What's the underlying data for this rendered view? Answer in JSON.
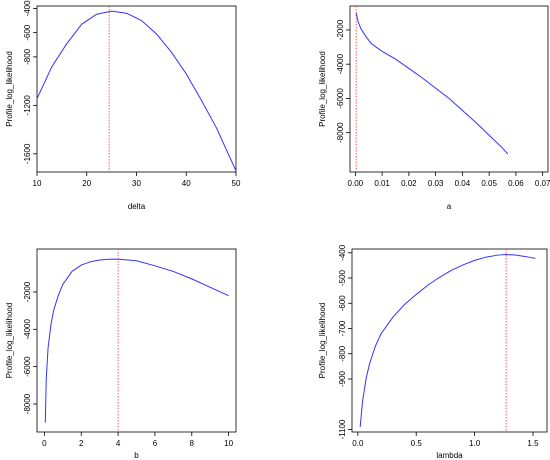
{
  "chart_data": [
    {
      "type": "line",
      "xlabel": "delta",
      "ylabel": "Profile_log_likelihood",
      "xlim": [
        10,
        50
      ],
      "ylim": [
        -1750,
        -380
      ],
      "xticks": [
        10,
        20,
        30,
        40,
        50
      ],
      "yticks": [
        -1600,
        -1200,
        -800,
        -600,
        -400
      ],
      "series": [
        {
          "x": [
            10,
            13,
            16,
            19,
            22,
            25,
            28,
            31,
            34,
            37,
            40,
            43,
            46,
            50
          ],
          "y": [
            -1145,
            -880,
            -690,
            -530,
            -448,
            -422,
            -440,
            -500,
            -610,
            -760,
            -940,
            -1155,
            -1380,
            -1740
          ]
        }
      ],
      "vline": 24.5,
      "colors": {
        "series": "#3333ff",
        "vline": "#ff3333"
      }
    },
    {
      "type": "line",
      "xlabel": "a",
      "ylabel": "Profile_log_likelihood",
      "xlim": [
        -0.002,
        0.072
      ],
      "ylim": [
        -10300,
        -600
      ],
      "xticks": [
        0.0,
        0.01,
        0.02,
        0.03,
        0.04,
        0.05,
        0.06,
        0.07
      ],
      "xtick_labels": [
        "0.00",
        "0.01",
        "0.02",
        "0.03",
        "0.04",
        "0.05",
        "0.06",
        "0.07"
      ],
      "yticks": [
        -8000,
        -6000,
        -4000,
        -2000
      ],
      "series": [
        {
          "x": [
            0.0003,
            0.001,
            0.002,
            0.004,
            0.006,
            0.01,
            0.015,
            0.02,
            0.025,
            0.03,
            0.035,
            0.04,
            0.045,
            0.05,
            0.055,
            0.057
          ],
          "y": [
            -1000,
            -1500,
            -1900,
            -2400,
            -2800,
            -3250,
            -3700,
            -4250,
            -4800,
            -5400,
            -6000,
            -6700,
            -7400,
            -8150,
            -8900,
            -9250
          ]
        }
      ],
      "vline": 0.0003,
      "colors": {
        "series": "#3333ff",
        "vline": "#ff3333"
      }
    },
    {
      "type": "line",
      "xlabel": "b",
      "ylabel": "Profile_log_likelihood",
      "xlim": [
        -0.4,
        10.4
      ],
      "ylim": [
        -9500,
        300
      ],
      "xticks": [
        0,
        2,
        4,
        6,
        8,
        10
      ],
      "yticks": [
        -8000,
        -6000,
        -4000,
        -2000
      ],
      "series": [
        {
          "x": [
            0.05,
            0.1,
            0.2,
            0.35,
            0.5,
            0.75,
            1.0,
            1.5,
            2.0,
            2.5,
            3.0,
            3.5,
            4.0,
            5.0,
            6.0,
            7.0,
            8.0,
            9.0,
            10.0
          ],
          "y": [
            -9000,
            -6700,
            -5000,
            -3800,
            -3000,
            -2200,
            -1600,
            -900,
            -560,
            -380,
            -290,
            -250,
            -240,
            -330,
            -600,
            -900,
            -1300,
            -1750,
            -2200
          ]
        }
      ],
      "vline": 4.0,
      "colors": {
        "series": "#3333ff",
        "vline": "#ff3333"
      }
    },
    {
      "type": "line",
      "xlabel": "lambda",
      "ylabel": "Profile_log_likelihood",
      "xlim": [
        -0.05,
        1.62
      ],
      "ylim": [
        -1110,
        -385
      ],
      "xticks": [
        0.0,
        0.5,
        1.0,
        1.5
      ],
      "xtick_labels": [
        "0.0",
        "0.5",
        "1.0",
        "1.5"
      ],
      "yticks": [
        -1100,
        -900,
        -800,
        -700,
        -600,
        -500,
        -400
      ],
      "series": [
        {
          "x": [
            0.02,
            0.04,
            0.07,
            0.1,
            0.15,
            0.2,
            0.3,
            0.4,
            0.5,
            0.6,
            0.7,
            0.8,
            0.9,
            1.0,
            1.1,
            1.2,
            1.27,
            1.35,
            1.45,
            1.52
          ],
          "y": [
            -1090,
            -990,
            -900,
            -840,
            -770,
            -720,
            -655,
            -605,
            -565,
            -528,
            -497,
            -470,
            -448,
            -430,
            -417,
            -409,
            -407,
            -409,
            -416,
            -422
          ]
        }
      ],
      "vline": 1.27,
      "colors": {
        "series": "#3333ff",
        "vline": "#ff3333"
      }
    }
  ]
}
